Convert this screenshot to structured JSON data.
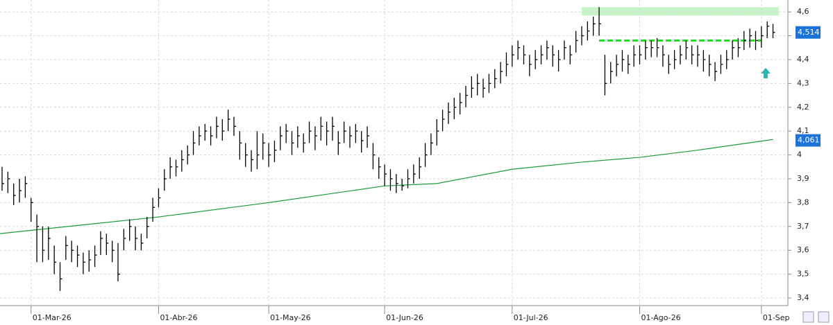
{
  "chart_data": {
    "type": "ohlc",
    "categories": [
      null,
      null,
      null,
      null,
      null,
      "01-Mar-26",
      null,
      null,
      null,
      null,
      null,
      null,
      null,
      null,
      null,
      null,
      null,
      null,
      null,
      null,
      null,
      null,
      null,
      null,
      null,
      null,
      null,
      "01-Abr-26",
      null,
      null,
      null,
      null,
      null,
      null,
      null,
      null,
      null,
      null,
      null,
      null,
      null,
      null,
      null,
      null,
      null,
      null,
      "01-May-26",
      null,
      null,
      null,
      null,
      null,
      null,
      null,
      null,
      null,
      null,
      null,
      null,
      null,
      null,
      null,
      null,
      null,
      null,
      null,
      "01-Jun-26",
      null,
      null,
      null,
      null,
      null,
      null,
      null,
      null,
      null,
      null,
      null,
      null,
      null,
      null,
      null,
      null,
      null,
      null,
      null,
      null,
      null,
      "01-Jul-26",
      null,
      null,
      null,
      null,
      null,
      null,
      null,
      null,
      null,
      null,
      null,
      null,
      null,
      null,
      null,
      null,
      null,
      null,
      null,
      null,
      null,
      "01-Ago-26",
      null,
      null,
      null,
      null,
      null,
      null,
      null,
      null,
      null,
      null,
      null,
      null,
      null,
      null,
      null,
      null,
      null,
      null,
      null,
      null,
      "01-Sep",
      null,
      null
    ],
    "close": [
      3.88,
      3.9,
      3.83,
      3.85,
      3.88,
      3.8,
      3.7,
      3.6,
      3.65,
      3.55,
      3.48,
      3.62,
      3.6,
      3.58,
      3.55,
      3.56,
      3.58,
      3.65,
      3.63,
      3.6,
      3.5,
      3.65,
      3.7,
      3.65,
      3.63,
      3.7,
      3.78,
      3.82,
      3.9,
      3.95,
      3.95,
      3.98,
      4.0,
      4.05,
      4.08,
      4.1,
      4.08,
      4.12,
      4.1,
      4.15,
      4.12,
      4.05,
      4.0,
      3.98,
      4.0,
      4.05,
      4.0,
      4.02,
      4.08,
      4.1,
      4.05,
      4.08,
      4.05,
      4.1,
      4.08,
      4.12,
      4.1,
      4.12,
      4.05,
      4.1,
      4.08,
      4.1,
      4.06,
      4.08,
      4.0,
      3.95,
      3.92,
      3.9,
      3.88,
      3.87,
      3.9,
      3.92,
      3.95,
      4.0,
      4.05,
      4.1,
      4.15,
      4.18,
      4.2,
      4.22,
      4.25,
      4.28,
      4.3,
      4.28,
      4.3,
      4.32,
      4.35,
      4.38,
      4.42,
      4.45,
      4.42,
      4.38,
      4.4,
      4.42,
      4.45,
      4.42,
      4.4,
      4.45,
      4.42,
      4.48,
      4.5,
      4.52,
      4.55,
      4.55,
      4.3,
      4.35,
      4.38,
      4.4,
      4.38,
      4.42,
      4.42,
      4.45,
      4.45,
      4.45,
      4.42,
      4.38,
      4.4,
      4.42,
      4.45,
      4.42,
      4.42,
      4.4,
      4.38,
      4.35,
      4.38,
      4.4,
      4.45,
      4.45,
      4.48,
      4.5,
      4.48,
      4.5,
      4.54,
      4.514
    ],
    "high": [
      3.95,
      3.93,
      3.88,
      3.9,
      3.91,
      3.82,
      3.75,
      3.7,
      3.7,
      3.62,
      3.55,
      3.66,
      3.64,
      3.62,
      3.59,
      3.6,
      3.62,
      3.68,
      3.67,
      3.64,
      3.63,
      3.69,
      3.73,
      3.7,
      3.67,
      3.74,
      3.82,
      3.86,
      3.94,
      3.99,
      3.98,
      4.02,
      4.04,
      4.1,
      4.12,
      4.13,
      4.12,
      4.16,
      4.15,
      4.19,
      4.16,
      4.1,
      4.05,
      4.02,
      4.1,
      4.09,
      4.05,
      4.06,
      4.12,
      4.13,
      4.1,
      4.12,
      4.09,
      4.14,
      4.12,
      4.16,
      4.14,
      4.16,
      4.1,
      4.14,
      4.12,
      4.13,
      4.1,
      4.12,
      4.05,
      3.99,
      3.96,
      3.94,
      3.92,
      3.9,
      3.94,
      3.96,
      3.99,
      4.05,
      4.09,
      4.15,
      4.19,
      4.22,
      4.24,
      4.26,
      4.29,
      4.33,
      4.34,
      4.32,
      4.34,
      4.36,
      4.39,
      4.43,
      4.46,
      4.48,
      4.46,
      4.42,
      4.44,
      4.46,
      4.48,
      4.46,
      4.44,
      4.48,
      4.46,
      4.52,
      4.54,
      4.56,
      4.58,
      4.62,
      4.42,
      4.39,
      4.42,
      4.44,
      4.42,
      4.46,
      4.46,
      4.48,
      4.48,
      4.49,
      4.46,
      4.42,
      4.44,
      4.46,
      4.48,
      4.46,
      4.46,
      4.44,
      4.42,
      4.39,
      4.42,
      4.44,
      4.48,
      4.49,
      4.52,
      4.53,
      4.52,
      4.54,
      4.56,
      4.55
    ],
    "low": [
      3.85,
      3.84,
      3.79,
      3.8,
      3.82,
      3.72,
      3.55,
      3.55,
      3.56,
      3.5,
      3.43,
      3.56,
      3.55,
      3.53,
      3.5,
      3.51,
      3.53,
      3.58,
      3.58,
      3.55,
      3.47,
      3.6,
      3.64,
      3.6,
      3.6,
      3.65,
      3.72,
      3.78,
      3.85,
      3.9,
      3.91,
      3.93,
      3.96,
      4.0,
      4.04,
      4.06,
      4.04,
      4.07,
      4.06,
      4.1,
      4.08,
      3.98,
      3.95,
      3.93,
      3.94,
      3.98,
      3.95,
      3.97,
      4.02,
      4.05,
      4.0,
      4.03,
      4.01,
      4.05,
      4.02,
      4.06,
      4.04,
      4.06,
      4.0,
      4.05,
      4.03,
      4.05,
      4.01,
      4.03,
      3.94,
      3.9,
      3.87,
      3.85,
      3.84,
      3.85,
      3.86,
      3.88,
      3.9,
      3.95,
      4.0,
      4.04,
      4.1,
      4.13,
      4.15,
      4.17,
      4.2,
      4.24,
      4.25,
      4.24,
      4.26,
      4.28,
      4.3,
      4.33,
      4.37,
      4.4,
      4.38,
      4.33,
      4.36,
      4.38,
      4.4,
      4.37,
      4.35,
      4.4,
      4.38,
      4.43,
      4.46,
      4.48,
      4.5,
      4.5,
      4.25,
      4.3,
      4.33,
      4.35,
      4.34,
      4.37,
      4.38,
      4.4,
      4.41,
      4.41,
      4.37,
      4.34,
      4.36,
      4.38,
      4.4,
      4.38,
      4.37,
      4.35,
      4.33,
      4.31,
      4.34,
      4.36,
      4.4,
      4.41,
      4.44,
      4.45,
      4.44,
      4.45,
      4.49,
      4.49
    ],
    "color": "#000000",
    "moving_average": {
      "color": "#1a9a3a",
      "x": [
        -0.36,
        27,
        46,
        66,
        75,
        88,
        100,
        110,
        120,
        133
      ],
      "values": [
        3.67,
        3.74,
        3.8,
        3.87,
        3.88,
        3.94,
        3.97,
        3.99,
        4.02,
        4.065
      ]
    },
    "resistance": {
      "color": "#22dd22",
      "value": 4.48,
      "x": [
        103,
        131
      ]
    },
    "target_zone": {
      "color": "#c8f5c8",
      "ylim": [
        4.585,
        4.62
      ],
      "x": [
        100,
        134
      ]
    },
    "price_markers": [
      {
        "value": 4.514,
        "label": "4,514"
      },
      {
        "value": 4.061,
        "label": "4,061"
      }
    ],
    "marker_color": "#1e73d6",
    "ylim": [
      3.368,
      4.65
    ],
    "yticks": [
      {
        "value": 3.4,
        "label": "3,4"
      },
      {
        "value": 3.5,
        "label": "3,5"
      },
      {
        "value": 3.6,
        "label": "3,6"
      },
      {
        "value": 3.7,
        "label": "3,7"
      },
      {
        "value": 3.8,
        "label": "3,8"
      },
      {
        "value": 3.9,
        "label": "3,9"
      },
      4,
      {
        "value": 4.1,
        "label": "4,1"
      },
      {
        "value": 4.2,
        "label": "4,2"
      },
      {
        "value": 4.3,
        "label": "4,3"
      },
      {
        "value": 4.4,
        "label": "4,4"
      },
      {
        "value": 4.5,
        "label": "4,5"
      },
      {
        "value": 4.6,
        "label": "4,6"
      }
    ],
    "grid": true
  }
}
